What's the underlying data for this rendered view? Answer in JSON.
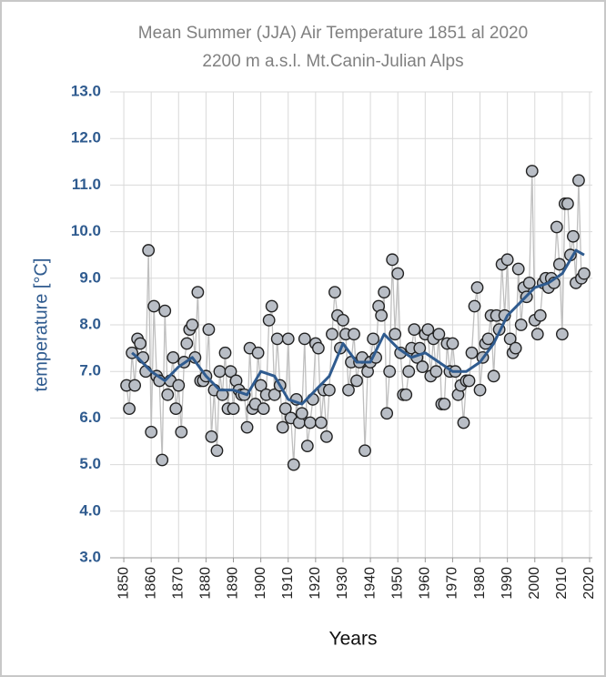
{
  "chart_data": {
    "type": "line",
    "title": [
      "Mean Summer (JJA) Air Temperature 1851 al 2020",
      "2200 m a.s.l. Mt.Canin-Julian Alps"
    ],
    "xlabel": "Years",
    "ylabel": "temperature [°C]",
    "xlim": [
      1845,
      2021
    ],
    "ylim": [
      3,
      13
    ],
    "xticks": [
      1850,
      1860,
      1870,
      1880,
      1890,
      1900,
      1910,
      1920,
      1930,
      1940,
      1950,
      1960,
      1970,
      1980,
      1990,
      2000,
      2010,
      2020
    ],
    "yticks": [
      {
        "value": 3,
        "label": "3.0"
      },
      {
        "value": 4,
        "label": "4.0"
      },
      {
        "value": 5,
        "label": "5.0"
      },
      {
        "value": 6,
        "label": "6.0"
      },
      {
        "value": 7,
        "label": "7.0"
      },
      {
        "value": 8,
        "label": "8.0"
      },
      {
        "value": 9,
        "label": "9.0"
      },
      {
        "value": 10,
        "label": "10.0"
      },
      {
        "value": 11,
        "label": "11.0"
      },
      {
        "value": 12,
        "label": "12.0"
      },
      {
        "value": 13,
        "label": "13.0"
      }
    ],
    "grid": true,
    "series": [
      {
        "color": "#bfbfbf",
        "marker": true,
        "marker_fill": "#b9bec6",
        "x": [
          1851,
          1852,
          1853,
          1854,
          1855,
          1856,
          1857,
          1858,
          1859,
          1860,
          1861,
          1862,
          1863,
          1864,
          1865,
          1866,
          1867,
          1868,
          1869,
          1870,
          1871,
          1872,
          1873,
          1874,
          1875,
          1876,
          1877,
          1878,
          1879,
          1880,
          1881,
          1882,
          1883,
          1884,
          1885,
          1886,
          1887,
          1888,
          1889,
          1890,
          1891,
          1892,
          1893,
          1894,
          1895,
          1896,
          1897,
          1898,
          1899,
          1900,
          1901,
          1902,
          1903,
          1904,
          1905,
          1906,
          1907,
          1908,
          1909,
          1910,
          1911,
          1912,
          1913,
          1914,
          1915,
          1916,
          1917,
          1918,
          1919,
          1920,
          1921,
          1922,
          1923,
          1924,
          1925,
          1926,
          1927,
          1928,
          1929,
          1930,
          1931,
          1932,
          1933,
          1934,
          1935,
          1936,
          1937,
          1938,
          1939,
          1940,
          1941,
          1942,
          1943,
          1944,
          1945,
          1946,
          1947,
          1948,
          1949,
          1950,
          1951,
          1952,
          1953,
          1954,
          1955,
          1956,
          1957,
          1958,
          1959,
          1960,
          1961,
          1962,
          1963,
          1964,
          1965,
          1966,
          1967,
          1968,
          1969,
          1970,
          1971,
          1972,
          1973,
          1974,
          1975,
          1976,
          1977,
          1978,
          1979,
          1980,
          1981,
          1982,
          1983,
          1984,
          1985,
          1986,
          1987,
          1988,
          1989,
          1990,
          1991,
          1992,
          1993,
          1994,
          1995,
          1996,
          1997,
          1998,
          1999,
          2000,
          2001,
          2002,
          2003,
          2004,
          2005,
          2006,
          2007,
          2008,
          2009,
          2010,
          2011,
          2012,
          2013,
          2014,
          2015,
          2016,
          2017,
          2018
        ],
        "values": [
          6.7,
          6.2,
          7.4,
          6.7,
          7.7,
          7.6,
          7.3,
          7.0,
          9.6,
          5.7,
          8.4,
          6.9,
          6.8,
          5.1,
          8.3,
          6.5,
          6.8,
          7.3,
          6.2,
          6.7,
          5.7,
          7.2,
          7.6,
          7.9,
          8.0,
          7.3,
          8.7,
          6.8,
          6.8,
          6.9,
          7.9,
          5.6,
          6.6,
          5.3,
          7.0,
          6.5,
          7.4,
          6.2,
          7.0,
          6.2,
          6.8,
          6.6,
          6.5,
          6.5,
          5.8,
          7.5,
          6.2,
          6.3,
          7.4,
          6.7,
          6.2,
          6.5,
          8.1,
          8.4,
          6.5,
          7.7,
          6.7,
          5.8,
          6.2,
          7.7,
          6.0,
          5.0,
          6.4,
          5.9,
          6.1,
          7.7,
          5.4,
          5.9,
          6.4,
          7.6,
          7.5,
          5.9,
          6.6,
          5.6,
          6.6,
          7.8,
          8.7,
          8.2,
          7.5,
          8.1,
          7.8,
          6.6,
          7.2,
          7.8,
          6.8,
          7.2,
          7.3,
          5.3,
          7.0,
          7.2,
          7.7,
          7.3,
          8.4,
          8.2,
          8.7,
          6.1,
          7.0,
          9.4,
          7.8,
          9.1,
          7.4,
          6.5,
          6.5,
          7.0,
          7.5,
          7.9,
          7.3,
          7.5,
          7.1,
          7.8,
          7.9,
          6.9,
          7.7,
          7.0,
          7.8,
          6.3,
          6.3,
          7.6,
          7.0,
          7.6,
          7.0,
          6.5,
          6.7,
          5.9,
          6.8,
          6.8,
          7.4,
          8.4,
          8.8,
          6.6,
          7.3,
          7.6,
          7.7,
          8.2,
          6.9,
          8.2,
          7.9,
          9.3,
          8.2,
          9.4,
          7.7,
          7.4,
          7.5,
          9.2,
          8.0,
          8.8,
          8.6,
          8.9,
          11.3,
          8.1,
          7.8,
          8.2,
          8.9,
          9.0,
          8.8,
          9.0,
          8.9,
          10.1,
          9.3,
          7.8,
          10.6,
          10.6,
          9.5,
          9.9,
          8.9,
          11.1,
          9.0,
          9.1
        ]
      },
      {
        "color": "#2f5b8f",
        "marker": false,
        "x": [
          1853,
          1855,
          1860,
          1865,
          1870,
          1875,
          1880,
          1885,
          1890,
          1895,
          1900,
          1905,
          1910,
          1915,
          1920,
          1925,
          1930,
          1935,
          1940,
          1945,
          1950,
          1955,
          1960,
          1965,
          1970,
          1975,
          1980,
          1985,
          1990,
          1995,
          2000,
          2005,
          2010,
          2015,
          2018
        ],
        "values": [
          7.4,
          7.3,
          7.0,
          6.8,
          7.1,
          7.3,
          6.9,
          6.6,
          6.6,
          6.5,
          7.0,
          6.9,
          6.4,
          6.3,
          6.6,
          6.9,
          7.6,
          7.2,
          7.2,
          7.8,
          7.5,
          7.3,
          7.4,
          7.2,
          7.0,
          7.0,
          7.2,
          7.6,
          8.2,
          8.5,
          8.8,
          8.9,
          9.1,
          9.6,
          9.5
        ]
      }
    ]
  }
}
